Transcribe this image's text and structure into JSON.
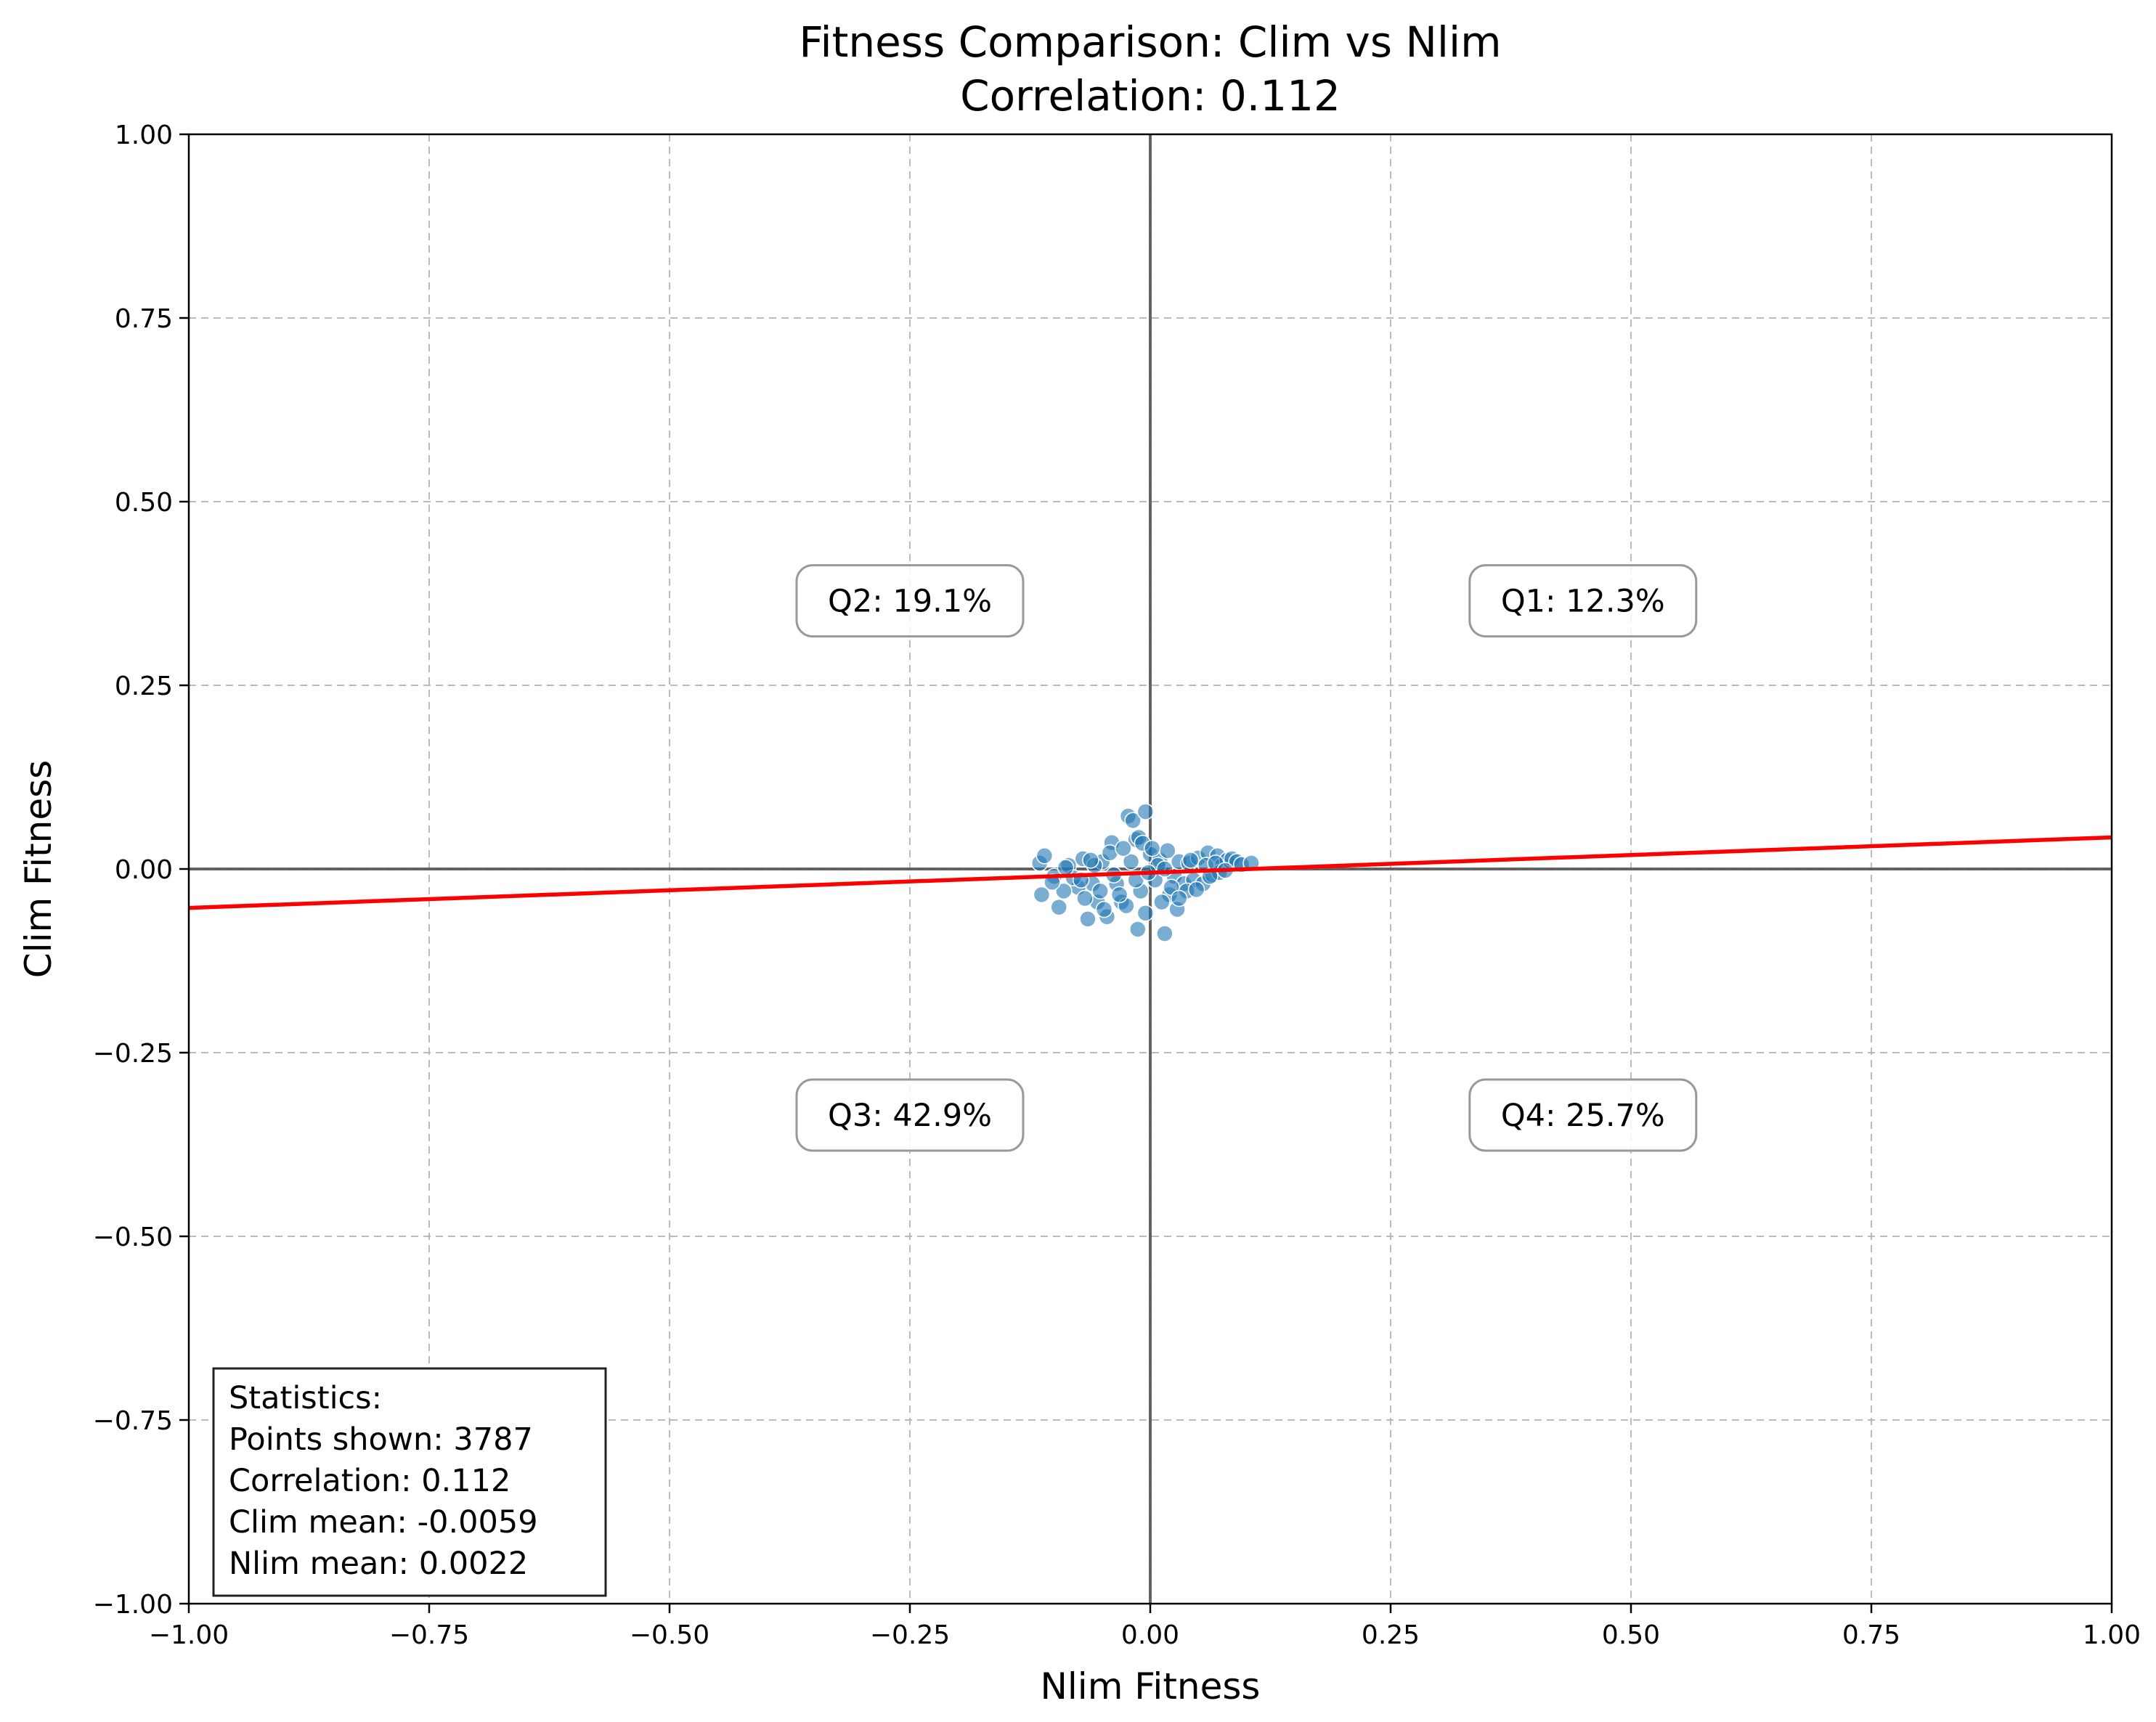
{
  "chart_data": {
    "type": "scatter",
    "title": "Fitness Comparison: Clim vs Nlim",
    "subtitle": "Correlation: 0.112",
    "xlabel": "Nlim Fitness",
    "ylabel": "Clim Fitness",
    "xlim": [
      -1.0,
      1.0
    ],
    "ylim": [
      -1.0,
      1.0
    ],
    "xticks": [
      "−1.00",
      "−0.75",
      "−0.50",
      "−0.25",
      "0.00",
      "0.25",
      "0.50",
      "0.75",
      "1.00"
    ],
    "yticks": [
      "−1.00",
      "−0.75",
      "−0.50",
      "−0.25",
      "0.00",
      "0.25",
      "0.50",
      "0.75",
      "1.00"
    ],
    "xtick_values": [
      -1.0,
      -0.75,
      -0.5,
      -0.25,
      0.0,
      0.25,
      0.5,
      0.75,
      1.0
    ],
    "ytick_values": [
      -1.0,
      -0.75,
      -0.5,
      -0.25,
      0.0,
      0.25,
      0.5,
      0.75,
      1.0
    ],
    "grid": true,
    "colors": {
      "points": "#1f77b4",
      "regression": "#ff0000",
      "zero_lines": "#555555",
      "grid": "#b0b0b0"
    },
    "regression_line": {
      "x": [
        -1.0,
        1.0
      ],
      "y": [
        -0.053,
        0.043
      ]
    },
    "quadrant_labels": [
      {
        "label": "Q1: 12.3%",
        "x": 0.45,
        "y": 0.365
      },
      {
        "label": "Q2: 19.1%",
        "x": -0.25,
        "y": 0.365
      },
      {
        "label": "Q3: 42.9%",
        "x": -0.25,
        "y": -0.335
      },
      {
        "label": "Q4: 25.7%",
        "x": 0.45,
        "y": -0.335
      }
    ],
    "statistics_box": {
      "lines": [
        "Statistics:",
        "Points shown: 3787",
        "Correlation: 0.112",
        "Clim mean: -0.0059",
        "Nlim mean: 0.0022"
      ],
      "placement": "bottom-left"
    },
    "series": [
      {
        "points": [
          [
            -0.115,
            0.008
          ],
          [
            -0.11,
            0.018
          ],
          [
            -0.113,
            -0.035
          ],
          [
            -0.095,
            -0.052
          ],
          [
            -0.1,
            -0.01
          ],
          [
            -0.085,
            0.005
          ],
          [
            -0.07,
            0.014
          ],
          [
            -0.065,
            -0.068
          ],
          [
            -0.055,
            -0.045
          ],
          [
            -0.04,
            0.036
          ],
          [
            -0.023,
            0.072
          ],
          [
            -0.018,
            0.066
          ],
          [
            -0.015,
            0.04
          ],
          [
            -0.012,
            0.043
          ],
          [
            -0.005,
            0.078
          ],
          [
            -0.013,
            -0.082
          ],
          [
            0.015,
            -0.088
          ],
          [
            0.028,
            -0.055
          ],
          [
            -0.045,
            -0.065
          ],
          [
            -0.03,
            -0.045
          ],
          [
            -0.05,
            0.01
          ],
          [
            -0.06,
            -0.02
          ],
          [
            -0.075,
            -0.025
          ],
          [
            -0.08,
            -0.012
          ],
          [
            -0.09,
            -0.03
          ],
          [
            -0.035,
            -0.02
          ],
          [
            -0.025,
            -0.05
          ],
          [
            -0.02,
            0.01
          ],
          [
            -0.01,
            -0.03
          ],
          [
            0.0,
            0.02
          ],
          [
            0.005,
            -0.015
          ],
          [
            0.01,
            0.012
          ],
          [
            0.02,
            -0.035
          ],
          [
            0.025,
            -0.01
          ],
          [
            0.03,
            0.01
          ],
          [
            0.035,
            -0.02
          ],
          [
            0.04,
            0.008
          ],
          [
            0.045,
            -0.015
          ],
          [
            0.05,
            0.015
          ],
          [
            0.055,
            -0.02
          ],
          [
            0.06,
            0.022
          ],
          [
            0.065,
            -0.008
          ],
          [
            0.07,
            0.018
          ],
          [
            0.075,
            0.005
          ],
          [
            0.08,
            0.012
          ],
          [
            0.085,
            0.014
          ],
          [
            0.09,
            0.01
          ],
          [
            0.095,
            0.006
          ],
          [
            0.105,
            0.008
          ],
          [
            -0.005,
            -0.06
          ],
          [
            0.012,
            -0.045
          ],
          [
            -0.042,
            0.022
          ],
          [
            -0.058,
            0.005
          ],
          [
            -0.068,
            -0.04
          ],
          [
            0.018,
            0.025
          ],
          [
            0.038,
            -0.03
          ],
          [
            0.058,
            0.005
          ],
          [
            0.072,
            -0.005
          ],
          [
            -0.028,
            0.028
          ],
          [
            -0.008,
            0.035
          ],
          [
            0.002,
            0.028
          ],
          [
            -0.015,
            -0.015
          ],
          [
            0.022,
            -0.025
          ],
          [
            0.048,
            -0.028
          ],
          [
            0.062,
            -0.01
          ],
          [
            -0.052,
            -0.03
          ],
          [
            -0.038,
            -0.008
          ],
          [
            -0.062,
            0.012
          ],
          [
            -0.088,
            0.002
          ],
          [
            -0.102,
            -0.018
          ],
          [
            0.008,
            0.005
          ],
          [
            0.03,
            -0.04
          ],
          [
            -0.002,
            -0.005
          ],
          [
            0.015,
            0.0
          ],
          [
            -0.032,
            -0.035
          ],
          [
            0.042,
            0.012
          ],
          [
            0.068,
            0.008
          ],
          [
            0.078,
            -0.002
          ],
          [
            -0.072,
            -0.015
          ],
          [
            -0.048,
            -0.055
          ]
        ]
      }
    ]
  }
}
